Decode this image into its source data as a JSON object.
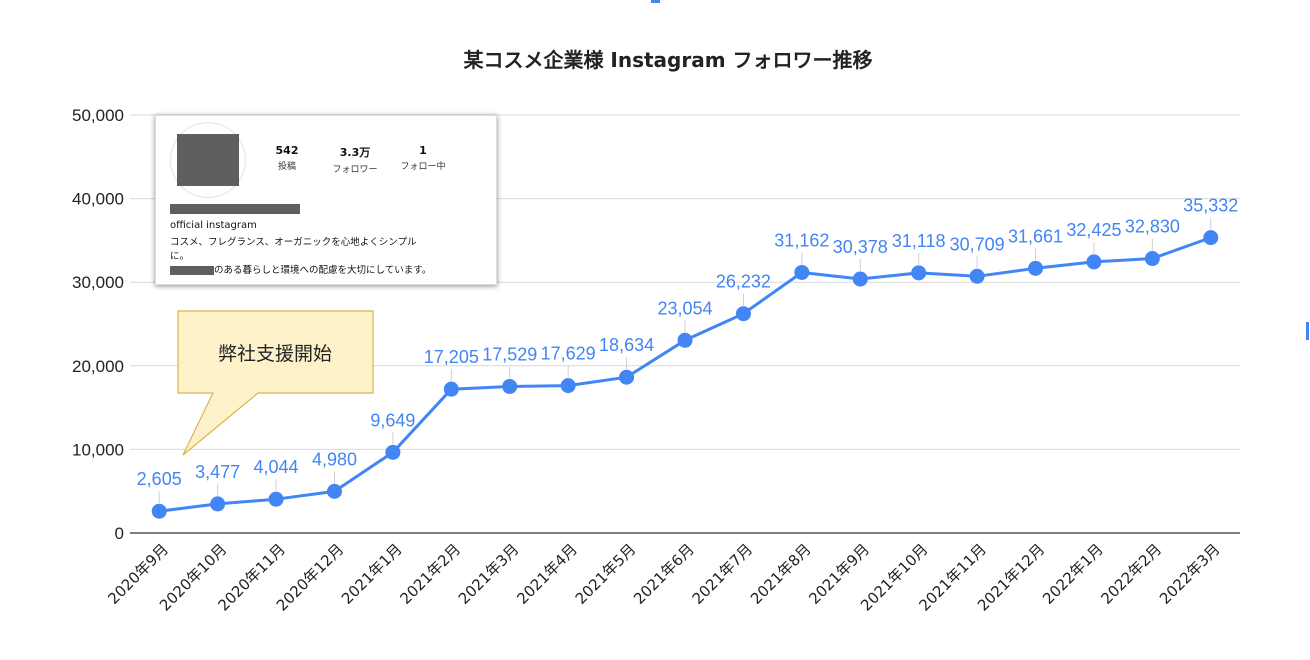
{
  "chart_data": {
    "type": "line",
    "title": "某コスメ企業様 Instagram フォロワー推移",
    "categories": [
      "2020年9月",
      "2020年10月",
      "2020年11月",
      "2020年12月",
      "2021年1月",
      "2021年2月",
      "2021年3月",
      "2021年4月",
      "2021年5月",
      "2021年6月",
      "2021年7月",
      "2021年8月",
      "2021年9月",
      "2021年10月",
      "2021年11月",
      "2021年12月",
      "2022年1月",
      "2022年2月",
      "2022年3月"
    ],
    "values": [
      2605,
      3477,
      4044,
      4980,
      9649,
      17205,
      17529,
      17629,
      18634,
      23054,
      26232,
      31162,
      30378,
      31118,
      30709,
      31661,
      32425,
      32830,
      35332
    ],
    "data_labels": [
      "2,605",
      "3,477",
      "4,044",
      "4,980",
      "9,649",
      "17,205",
      "17,529",
      "17,629",
      "18,634",
      "23,054",
      "26,232",
      "31,162",
      "30,378",
      "31,118",
      "30,709",
      "31,661",
      "32,425",
      "32,830",
      "35,332"
    ],
    "yticks": [
      "0",
      "10,000",
      "20,000",
      "30,000",
      "40,000",
      "50,000"
    ],
    "ylim": [
      0,
      50000
    ],
    "grid": true,
    "legend": "none",
    "color": "#4285f4"
  },
  "annotation": {
    "text": "弊社支援開始",
    "fill": "#fdf1c9",
    "stroke": "#d9b54a"
  },
  "profile": {
    "stats": [
      {
        "value": "542",
        "label": "投稿"
      },
      {
        "value": "3.3万",
        "label": "フォロワー"
      },
      {
        "value": "1",
        "label": "フォロー中"
      }
    ],
    "handle": "official instagram",
    "bio_line1": "コスメ、フレグランス、オーガニックを心地よくシンプル",
    "bio_line2": "に。",
    "bio_line3": "のある暮らしと環境への配慮を大切にしています。"
  }
}
